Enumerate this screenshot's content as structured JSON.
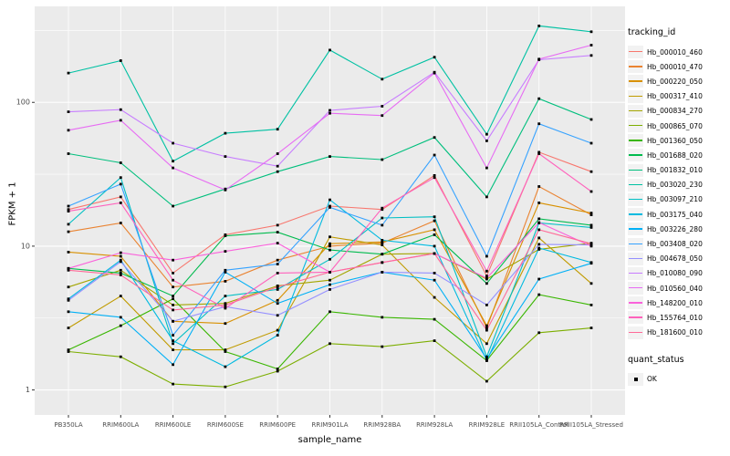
{
  "figure": {
    "background": "#FFFFFF",
    "panel_background": "#EBEBEB",
    "grid_color": "#FFFFFF",
    "tick_text_color": "#4D4D4D",
    "tick_mark_color": "#333333",
    "point_color": "#000000"
  },
  "chart_data": {
    "type": "line",
    "title": "",
    "xlabel": "sample_name",
    "ylabel": "FPKM + 1",
    "y_scale": "log10",
    "y_ticks": [
      "1",
      "10",
      "100"
    ],
    "y_tick_values": [
      1,
      10,
      100
    ],
    "y_minor_values": [
      3.162,
      31.62,
      316.2
    ],
    "ylim": [
      0.67,
      465
    ],
    "grid": true,
    "legend_position": "right",
    "legend_title": "tracking_id",
    "categories": [
      "PB350LA",
      "RRIM600LA",
      "RRIM600LE",
      "RRIM600SE",
      "RRIM600PE",
      "RRIM901LA",
      "RRIM928BA",
      "RRIM928LA",
      "RRIM928LE",
      "RRII105LA_Control",
      "RRII105LA_Stressed"
    ],
    "series": [
      {
        "name": "Hb_000010_460",
        "color": "#F8766D",
        "values": [
          18,
          22,
          6.5,
          12,
          14,
          19,
          18,
          31,
          6.2,
          45,
          33
        ]
      },
      {
        "name": "Hb_000010_470",
        "color": "#EA8331",
        "values": [
          12.6,
          14.5,
          5.2,
          5.7,
          8,
          10,
          10.5,
          15,
          2.7,
          26,
          16.5
        ]
      },
      {
        "name": "Hb_000220_050",
        "color": "#D89000",
        "values": [
          9.1,
          8.5,
          3.0,
          2.9,
          4.2,
          10.4,
          10.7,
          13,
          2.8,
          20,
          17
        ]
      },
      {
        "name": "Hb_000317_410",
        "color": "#C09B00",
        "values": [
          2.7,
          4.5,
          1.9,
          1.9,
          2.6,
          11.6,
          10.2,
          4.4,
          2.1,
          11.4,
          5.5
        ]
      },
      {
        "name": "Hb_000834_270",
        "color": "#A3A500",
        "values": [
          5.2,
          6.8,
          3.9,
          4.0,
          5.3,
          5.8,
          8.8,
          8.9,
          5.9,
          9.5,
          10.5
        ]
      },
      {
        "name": "Hb_000865_070",
        "color": "#7CAE00",
        "values": [
          1.85,
          1.7,
          1.1,
          1.05,
          1.35,
          2.1,
          2.0,
          2.2,
          1.15,
          2.5,
          2.7
        ]
      },
      {
        "name": "Hb_001360_050",
        "color": "#39B600",
        "values": [
          1.9,
          2.8,
          4.3,
          1.85,
          1.4,
          3.5,
          3.2,
          3.1,
          1.6,
          4.6,
          3.9
        ]
      },
      {
        "name": "Hb_001688_020",
        "color": "#00BB4E",
        "values": [
          7.0,
          6.5,
          4.5,
          11.8,
          12.5,
          9.4,
          8.8,
          12,
          5.5,
          15.5,
          14
        ]
      },
      {
        "name": "Hb_001832_010",
        "color": "#00BF7D",
        "values": [
          44,
          38,
          19,
          25,
          33,
          42,
          40,
          57,
          22,
          106,
          76
        ]
      },
      {
        "name": "Hb_003020_230",
        "color": "#00C1A3",
        "values": [
          160,
          195,
          39,
          61,
          65,
          231,
          145,
          206,
          60,
          340,
          310
        ]
      },
      {
        "name": "Hb_003097_210",
        "color": "#00BFC4",
        "values": [
          14.2,
          30,
          2.1,
          4.5,
          5.0,
          8.1,
          15.7,
          16,
          1.7,
          14.5,
          13.5
        ]
      },
      {
        "name": "Hb_003175_040",
        "color": "#00BAE0",
        "values": [
          4.3,
          8.0,
          2.2,
          1.45,
          2.4,
          21,
          11,
          10,
          1.6,
          9.7,
          7.7
        ]
      },
      {
        "name": "Hb_003226_280",
        "color": "#00B0F6",
        "values": [
          3.5,
          3.2,
          1.5,
          6.6,
          4.0,
          5.4,
          6.6,
          5.8,
          1.65,
          5.9,
          7.6
        ]
      },
      {
        "name": "Hb_003408_020",
        "color": "#35A2FF",
        "values": [
          19,
          27,
          2.4,
          6.8,
          7.5,
          18.6,
          14,
          43,
          8.5,
          71,
          52
        ]
      },
      {
        "name": "Hb_004678_050",
        "color": "#9590FF",
        "values": [
          4.2,
          7.8,
          3.0,
          3.8,
          3.3,
          5.0,
          6.6,
          6.5,
          3.9,
          10.3,
          10.2
        ]
      },
      {
        "name": "Hb_010080_090",
        "color": "#C77CFF",
        "values": [
          86,
          89,
          52,
          42,
          36,
          88,
          94,
          162,
          54,
          198,
          212
        ]
      },
      {
        "name": "Hb_010560_040",
        "color": "#E76BF3",
        "values": [
          64,
          75,
          35,
          24.6,
          44,
          84,
          81,
          160,
          35,
          200,
          250
        ]
      },
      {
        "name": "Hb_148200_010",
        "color": "#FA62DB",
        "values": [
          7.0,
          9.0,
          8.0,
          9.2,
          10.5,
          6.6,
          7.7,
          8.9,
          6.0,
          14.6,
          10.0
        ]
      },
      {
        "name": "Hb_155764_010",
        "color": "#FF62BC",
        "values": [
          17.5,
          20,
          5.8,
          3.7,
          6.5,
          6.6,
          18.4,
          30,
          6.7,
          44,
          24
        ]
      },
      {
        "name": "Hb_181600_010",
        "color": "#FF6A98",
        "values": [
          6.8,
          6.3,
          3.6,
          3.9,
          5.2,
          6.6,
          7.7,
          8.9,
          2.6,
          13,
          10.4
        ]
      }
    ],
    "quant_status": {
      "title": "quant_status",
      "label": "OK",
      "marker_color": "#000000"
    }
  }
}
